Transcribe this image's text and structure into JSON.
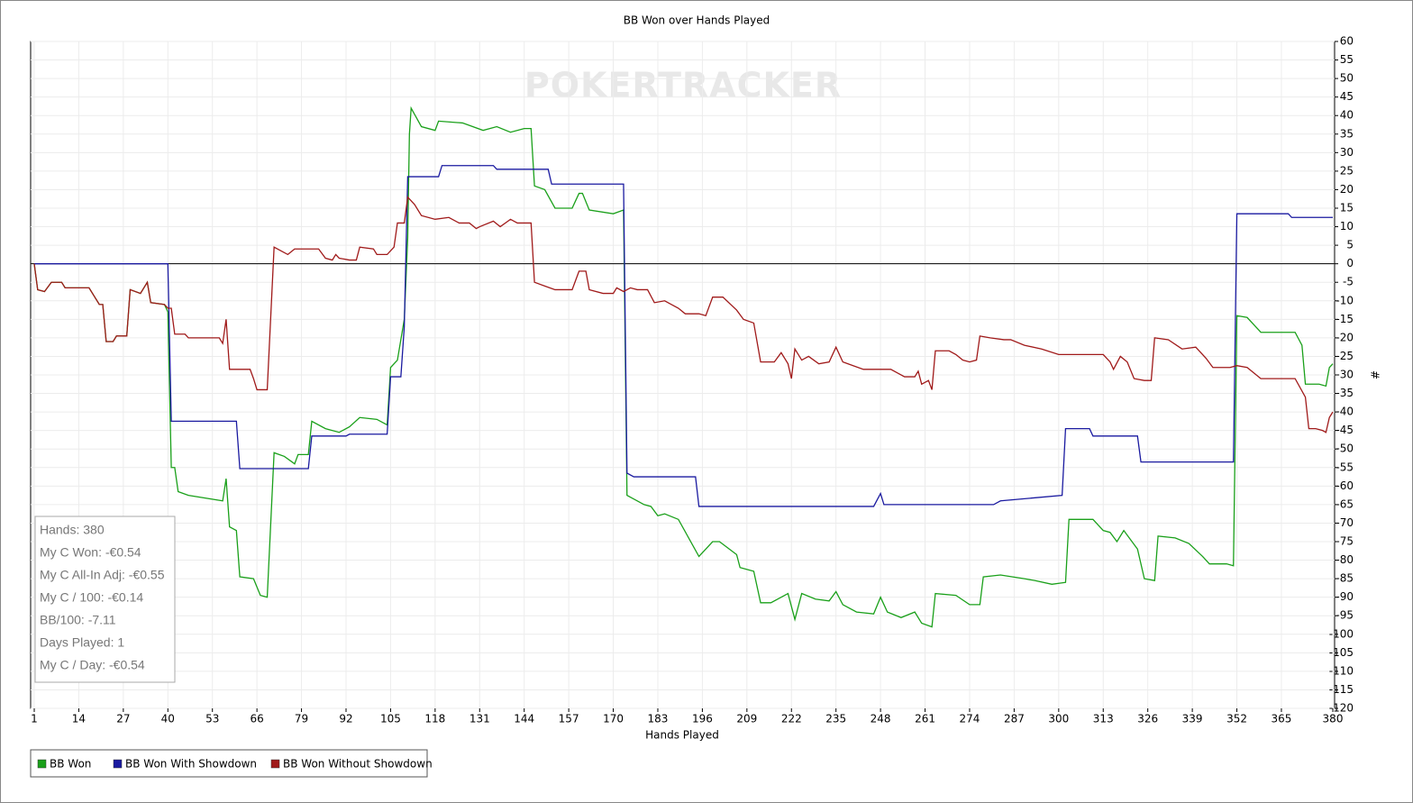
{
  "chart_data": {
    "type": "line",
    "title": "BB Won over Hands Played",
    "xlabel": "Hands Played",
    "ylabel": "#",
    "watermark": "POKERTRACKER",
    "xlim": [
      1,
      380
    ],
    "ylim": [
      -120,
      60
    ],
    "xticks": [
      1,
      14,
      27,
      40,
      53,
      66,
      79,
      92,
      105,
      118,
      131,
      144,
      157,
      170,
      183,
      196,
      209,
      222,
      235,
      248,
      261,
      274,
      287,
      300,
      313,
      326,
      339,
      352,
      365,
      380
    ],
    "yticks": [
      60,
      55,
      50,
      45,
      40,
      35,
      30,
      25,
      20,
      15,
      10,
      5,
      0,
      -5,
      -10,
      -15,
      -20,
      -25,
      -30,
      -35,
      -40,
      -45,
      -50,
      -55,
      -60,
      -65,
      -70,
      -75,
      -80,
      -85,
      -90,
      -95,
      -100,
      -105,
      -110,
      -115,
      -120
    ],
    "grid": true,
    "legend": "bottom-left",
    "stats": [
      "Hands: 380",
      "My C Won: -€0.54",
      "My C All-In Adj: -€0.55",
      "My C / 100: -€0.14",
      "BB/100: -7.11",
      "Days Played: 1",
      "My C / Day: -€0.54"
    ],
    "series": [
      {
        "name": "BB Won",
        "color": "#1aa01a",
        "x": [
          1,
          2,
          4,
          6,
          9,
          10,
          17,
          18,
          20,
          21,
          22,
          24,
          25,
          28,
          29,
          32,
          34,
          35,
          39,
          40,
          41,
          42,
          43,
          46,
          56,
          57,
          58,
          60,
          61,
          65,
          67,
          69,
          71,
          74,
          77,
          78,
          81,
          82,
          86,
          90,
          93,
          96,
          101,
          104,
          105,
          107,
          109,
          110,
          110.5,
          111,
          114,
          118,
          119,
          126,
          132,
          136,
          140,
          144,
          146,
          147,
          150,
          153,
          158,
          160,
          161,
          163,
          170,
          173,
          174,
          175,
          179,
          181,
          183,
          185,
          189,
          195,
          199,
          201,
          206,
          207,
          211,
          213,
          216,
          221,
          223,
          225,
          229,
          233,
          235,
          237,
          241,
          246,
          248,
          250,
          254,
          258,
          260,
          263,
          264,
          270,
          274,
          277,
          278,
          283,
          290,
          293,
          298,
          302,
          303,
          310,
          313,
          315,
          317,
          319,
          323,
          325,
          328,
          329,
          334,
          338,
          342,
          344,
          349,
          351,
          352,
          355,
          359,
          369,
          371,
          372,
          376,
          378,
          379,
          380
        ],
        "values": [
          0,
          -7,
          -7.5,
          -5,
          -5,
          -6.5,
          -6.5,
          -8,
          -11,
          -11,
          -21,
          -21,
          -19.5,
          -19.5,
          -7,
          -8,
          -5,
          -10.5,
          -11,
          -13,
          -55,
          -55,
          -61.5,
          -62.5,
          -64,
          -58,
          -71,
          -72,
          -84.5,
          -85,
          -89.5,
          -90,
          -51,
          -52,
          -54,
          -51.5,
          -51.5,
          -42.5,
          -44.5,
          -45.5,
          -44,
          -41.5,
          -42,
          -43.5,
          -28,
          -26,
          -15,
          7,
          35,
          42,
          37,
          36,
          38.5,
          38,
          36,
          37,
          35.5,
          36.5,
          36.5,
          21,
          20,
          15,
          15,
          19,
          19,
          14.5,
          13.5,
          14.5,
          -62.5,
          -63,
          -65,
          -65.5,
          -68,
          -67.5,
          -69,
          -79,
          -75,
          -75,
          -78.5,
          -82,
          -83,
          -91.5,
          -91.5,
          -89,
          -96,
          -89,
          -90.5,
          -91,
          -88.5,
          -92,
          -94,
          -94.5,
          -90,
          -94,
          -95.5,
          -94,
          -97,
          -98,
          -89,
          -89.5,
          -92,
          -92,
          -84.5,
          -84,
          -85,
          -85.5,
          -86.5,
          -86,
          -69,
          -69,
          -72,
          -72.5,
          -75,
          -72,
          -77,
          -85,
          -85.5,
          -73.5,
          -74,
          -75.5,
          -79,
          -81,
          -81,
          -81.5,
          -14,
          -14.5,
          -18.5,
          -18.5,
          -22,
          -32.5,
          -32.5,
          -33,
          -28,
          -27
        ]
      },
      {
        "name": "BB Won With Showdown",
        "color": "#1a1aa0",
        "x": [
          1,
          40,
          41,
          60,
          61,
          81,
          82,
          92,
          93,
          104,
          105,
          108,
          109,
          110,
          119,
          120,
          135,
          136,
          151,
          152,
          173,
          174,
          176,
          194,
          195,
          246,
          248,
          249,
          281,
          283,
          301,
          302,
          309,
          310,
          323,
          324,
          351,
          352,
          367,
          368,
          380
        ],
        "values": [
          0,
          0,
          -42.5,
          -42.5,
          -55.3,
          -55.3,
          -46.5,
          -46.5,
          -46,
          -46,
          -30.5,
          -30.5,
          -17,
          23.5,
          23.5,
          26.5,
          26.5,
          25.5,
          25.5,
          21.5,
          21.5,
          -56.5,
          -57.5,
          -57.5,
          -65.5,
          -65.5,
          -62,
          -65,
          -65,
          -64,
          -62.5,
          -44.5,
          -44.5,
          -46.5,
          -46.5,
          -53.5,
          -53.5,
          13.5,
          13.5,
          12.5,
          12.5
        ]
      },
      {
        "name": "BB Won Without Showdown",
        "color": "#a01a1a",
        "x": [
          1,
          2,
          4,
          6,
          9,
          10,
          17,
          18,
          20,
          21,
          22,
          24,
          25,
          28,
          29,
          32,
          34,
          35,
          39,
          40,
          41,
          42,
          45,
          46,
          55,
          56,
          57,
          58,
          64,
          65,
          66,
          69,
          71,
          73,
          75,
          77,
          84,
          86,
          88,
          89,
          90,
          93,
          95,
          96,
          100,
          101,
          104,
          106,
          107,
          109,
          110,
          112,
          114,
          118,
          122,
          125,
          128,
          130,
          131,
          135,
          137,
          140,
          142,
          146,
          147,
          150,
          153,
          158,
          160,
          162,
          163,
          167,
          170,
          171,
          173,
          175,
          177,
          180,
          182,
          185,
          187,
          189,
          191,
          195,
          197,
          199,
          202,
          206,
          208,
          211,
          213,
          217,
          219,
          221,
          222,
          223,
          225,
          227,
          230,
          233,
          235,
          237,
          240,
          243,
          251,
          253,
          255,
          258,
          259,
          260,
          262,
          263,
          264,
          268,
          270,
          272,
          274,
          276,
          277,
          280,
          284,
          286,
          290,
          295,
          300,
          313,
          315,
          316,
          318,
          320,
          322,
          325,
          327,
          328,
          332,
          336,
          340,
          343,
          345,
          350,
          352,
          355,
          359,
          369,
          372,
          373,
          375,
          377,
          378,
          379,
          380
        ],
        "values": [
          0,
          -7,
          -7.5,
          -5,
          -5,
          -6.5,
          -6.5,
          -8,
          -11,
          -11,
          -21,
          -21,
          -19.5,
          -19.5,
          -7,
          -8,
          -5,
          -10.5,
          -11,
          -12,
          -12,
          -19,
          -19,
          -20,
          -20,
          -21.5,
          -15,
          -28.5,
          -28.5,
          -31,
          -34,
          -34,
          4.5,
          3.5,
          2.5,
          4,
          4,
          1.5,
          1,
          2.5,
          1.5,
          1,
          1,
          4.5,
          4,
          2.5,
          2.5,
          4.5,
          11,
          11,
          18,
          16,
          13,
          12,
          12.5,
          11,
          11,
          9.5,
          10,
          11.5,
          10,
          12,
          11,
          11,
          -5,
          -6,
          -7,
          -7,
          -2,
          -2,
          -7,
          -8,
          -8,
          -6.5,
          -7.5,
          -6.5,
          -7,
          -7,
          -10.5,
          -10,
          -11,
          -12,
          -13.5,
          -13.5,
          -14,
          -9,
          -9,
          -12.5,
          -15,
          -16,
          -26.5,
          -26.5,
          -24,
          -27,
          -31,
          -23,
          -26,
          -25,
          -27,
          -26.5,
          -22.5,
          -26.5,
          -27.5,
          -28.5,
          -28.5,
          -29.5,
          -30.5,
          -30.5,
          -29,
          -32.5,
          -31.5,
          -34,
          -23.5,
          -23.5,
          -24.5,
          -26,
          -26.5,
          -26,
          -19.5,
          -20,
          -20.5,
          -20.5,
          -22,
          -23,
          -24.5,
          -24.5,
          -26.5,
          -28.5,
          -25,
          -26.5,
          -31,
          -31.5,
          -31.5,
          -20,
          -20.5,
          -23,
          -22.5,
          -25.5,
          -28,
          -28,
          -27.5,
          -28,
          -31,
          -31,
          -36,
          -44.5,
          -44.5,
          -45,
          -45.5,
          -41.5,
          -40
        ]
      }
    ]
  }
}
